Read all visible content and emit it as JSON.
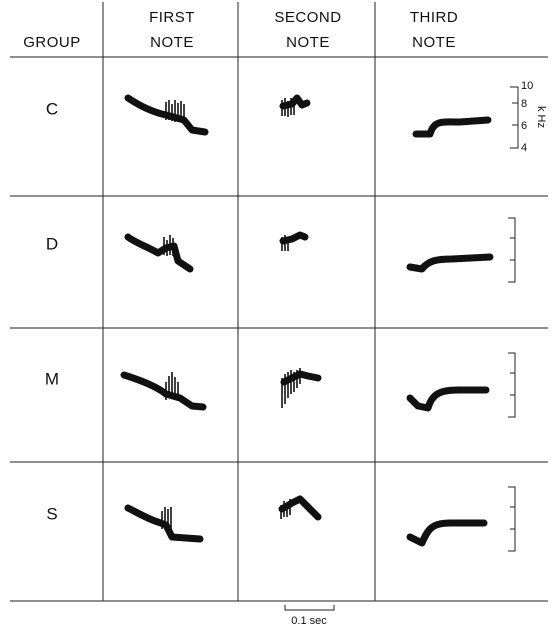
{
  "header": {
    "group": "GROUP",
    "columns": [
      [
        "FIRST",
        "NOTE"
      ],
      [
        "SECOND",
        "NOTE"
      ],
      [
        "THIRD",
        "NOTE"
      ]
    ]
  },
  "rows": [
    "C",
    "D",
    "M",
    "S"
  ],
  "frequency_axis": {
    "ticks": [
      "10",
      "8",
      "6",
      "4"
    ],
    "unit": "k Hz"
  },
  "time_scale": "0.1 sec"
}
